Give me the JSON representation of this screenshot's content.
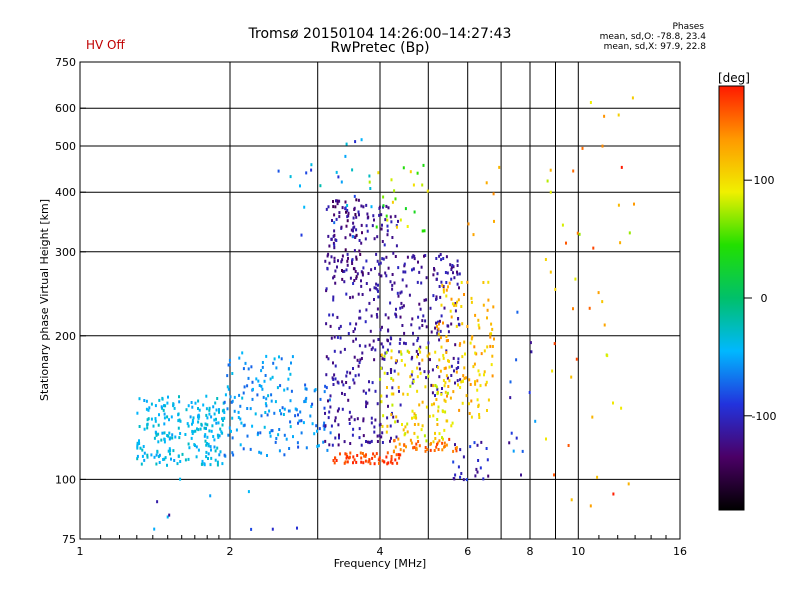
{
  "chart_data": {
    "type": "scatter",
    "title": "Tromsø 20150104 14:26:00–14:27:43",
    "subtitle": "RwPretec (Bp)",
    "status_label": "HV Off",
    "status_color": "#c00000",
    "xlabel": "Frequency [MHz]",
    "ylabel": "Stationary phase Virtual Height [km]",
    "x_scale": "log",
    "y_scale": "log",
    "xlim": [
      1,
      16
    ],
    "ylim": [
      75,
      750
    ],
    "x_ticks": [
      1,
      2,
      4,
      6,
      8,
      10,
      16
    ],
    "x_tick_labels": [
      "1",
      "2",
      "4",
      "6",
      "8",
      "10",
      "16"
    ],
    "x_grid": [
      1,
      2,
      3,
      4,
      5,
      6,
      7,
      8,
      9,
      10
    ],
    "y_ticks": [
      75,
      100,
      200,
      300,
      400,
      500,
      600,
      750
    ],
    "y_tick_labels": [
      "75",
      "100",
      "200",
      "300",
      "400",
      "500",
      "600",
      "750"
    ],
    "y_grid": [
      100,
      200,
      300,
      400,
      500,
      600
    ],
    "phases_box": {
      "title": "Phases",
      "line_o": "mean, sd,O:  -78.8, 23.4",
      "line_x": "mean, sd,X:   97.9, 22.8"
    },
    "colorbar": {
      "label": "[deg]",
      "range": [
        -180,
        180
      ],
      "ticks": [
        100,
        0,
        -100
      ],
      "tick_labels": [
        "100",
        "0",
        "-100"
      ],
      "stops": [
        "#000000",
        "#4b0066",
        "#2233dd",
        "#00b8ff",
        "#00c06a",
        "#22e000",
        "#f0f000",
        "#ff9900",
        "#ff1a00"
      ]
    },
    "clusters": [
      {
        "f": [
          1.3,
          1.95
        ],
        "h": [
          107,
          150
        ],
        "phase": -40,
        "spread": 15,
        "n": 230
      },
      {
        "f": [
          1.95,
          2.7
        ],
        "h": [
          112,
          185
        ],
        "phase": -55,
        "spread": 20,
        "n": 130
      },
      {
        "f": [
          2.7,
          3.2
        ],
        "h": [
          115,
          160
        ],
        "phase": -65,
        "spread": 20,
        "n": 45
      },
      {
        "f": [
          3.1,
          4.4
        ],
        "h": [
          118,
          380
        ],
        "phase": -115,
        "spread": 15,
        "n": 330
      },
      {
        "f": [
          3.2,
          3.7
        ],
        "h": [
          260,
          390
        ],
        "phase": -130,
        "spread": 15,
        "n": 55
      },
      {
        "f": [
          4.3,
          5.8
        ],
        "h": [
          150,
          300
        ],
        "phase": -115,
        "spread": 15,
        "n": 150
      },
      {
        "f": [
          4.0,
          5.6
        ],
        "h": [
          120,
          190
        ],
        "phase": 100,
        "spread": 25,
        "n": 110
      },
      {
        "f": [
          5.2,
          6.8
        ],
        "h": [
          135,
          260
        ],
        "phase": 115,
        "spread": 25,
        "n": 130
      },
      {
        "f": [
          3.2,
          4.4
        ],
        "h": [
          108,
          114
        ],
        "phase": 165,
        "spread": 15,
        "n": 60
      },
      {
        "f": [
          4.2,
          5.8
        ],
        "h": [
          114,
          122
        ],
        "phase": 150,
        "spread": 20,
        "n": 45
      },
      {
        "f": [
          5.6,
          6.6
        ],
        "h": [
          100,
          120
        ],
        "phase": -105,
        "spread": 25,
        "n": 25
      },
      {
        "f": [
          2.5,
          3.9
        ],
        "h": [
          320,
          530
        ],
        "phase": -60,
        "spread": 40,
        "n": 25
      },
      {
        "f": [
          3.8,
          5.0
        ],
        "h": [
          330,
          470
        ],
        "phase": 70,
        "spread": 40,
        "n": 25
      },
      {
        "f": [
          1.1,
          3.0
        ],
        "h": [
          78,
          110
        ],
        "phase": -80,
        "spread": 40,
        "n": 10
      },
      {
        "f": [
          7.2,
          8.2
        ],
        "h": [
          95,
          250
        ],
        "phase": -90,
        "spread": 40,
        "n": 14
      },
      {
        "f": [
          8.6,
          10.2
        ],
        "h": [
          80,
          560
        ],
        "phase": 120,
        "spread": 50,
        "n": 22
      },
      {
        "f": [
          10.5,
          13.0
        ],
        "h": [
          85,
          650
        ],
        "phase": 130,
        "spread": 60,
        "n": 24
      },
      {
        "f": [
          6.0,
          7.5
        ],
        "h": [
          300,
          480
        ],
        "phase": 150,
        "spread": 40,
        "n": 6
      }
    ]
  }
}
